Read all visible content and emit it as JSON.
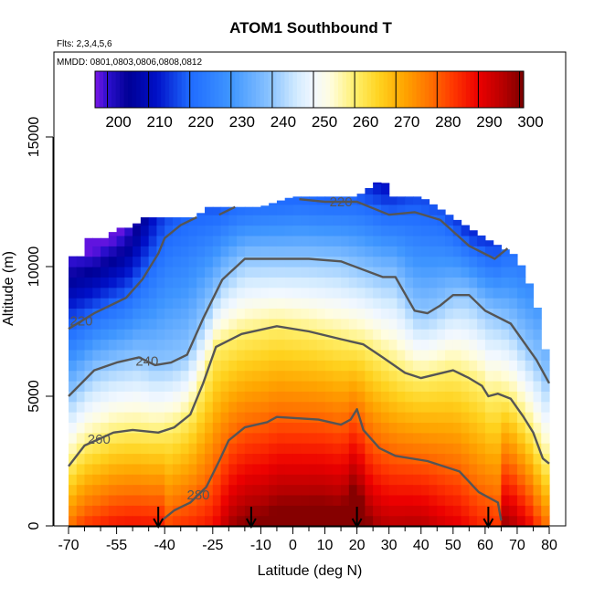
{
  "chart_data": {
    "type": "heatmap",
    "title": "ATOM1 Southbound T",
    "subtitle_lines": [
      "Flts: 2,3,4,5,6",
      "MMDD: 0801,0803,0806,0808,0812"
    ],
    "xlabel": "Latitude (deg N)",
    "ylabel": "Altitude (m)",
    "xlim": [
      -70,
      80
    ],
    "ylim": [
      0,
      17500
    ],
    "x_ticks": [
      -70,
      -55,
      -40,
      -25,
      -10,
      0,
      10,
      20,
      30,
      40,
      50,
      60,
      70,
      80
    ],
    "x_ticks_minor": [
      -65,
      -60,
      -50,
      -45,
      -35,
      -30,
      -20,
      -15,
      -5,
      5,
      15,
      25,
      35,
      45,
      55,
      65,
      75
    ],
    "y_ticks": [
      0,
      5000,
      10000,
      15000
    ],
    "colorbar": {
      "ticks": [
        200,
        210,
        220,
        230,
        240,
        250,
        260,
        270,
        280,
        290,
        300
      ],
      "range": [
        197,
        301
      ],
      "stops": [
        {
          "v": 197,
          "c": "#7b16e6"
        },
        {
          "v": 200,
          "c": "#2e0fd0"
        },
        {
          "v": 205,
          "c": "#000095"
        },
        {
          "v": 212,
          "c": "#0010c8"
        },
        {
          "v": 220,
          "c": "#1f6bff"
        },
        {
          "v": 230,
          "c": "#3f96ff"
        },
        {
          "v": 240,
          "c": "#8fc6ff"
        },
        {
          "v": 246,
          "c": "#d3ebff"
        },
        {
          "v": 250,
          "c": "#f2f8ff"
        },
        {
          "v": 254,
          "c": "#fffde0"
        },
        {
          "v": 260,
          "c": "#fff06e"
        },
        {
          "v": 266,
          "c": "#ffd21e"
        },
        {
          "v": 272,
          "c": "#ffa500"
        },
        {
          "v": 278,
          "c": "#ff7400"
        },
        {
          "v": 284,
          "c": "#ff3600"
        },
        {
          "v": 290,
          "c": "#ec0000"
        },
        {
          "v": 296,
          "c": "#b70000"
        },
        {
          "v": 301,
          "c": "#7a0000"
        }
      ]
    },
    "top_altitude_by_lat": [
      [
        -70,
        10400
      ],
      [
        -66,
        10400
      ],
      [
        -64,
        11100
      ],
      [
        -58,
        11100
      ],
      [
        -55,
        11500
      ],
      [
        -50,
        11500
      ],
      [
        -47,
        11900
      ],
      [
        -40,
        11900
      ],
      [
        -30,
        11900
      ],
      [
        -27,
        12300
      ],
      [
        -20,
        12300
      ],
      [
        -15,
        12300
      ],
      [
        -10,
        12300
      ],
      [
        0,
        12700
      ],
      [
        10,
        12700
      ],
      [
        20,
        12700
      ],
      [
        28,
        13400
      ],
      [
        31,
        12700
      ],
      [
        40,
        12700
      ],
      [
        45,
        12300
      ],
      [
        50,
        11900
      ],
      [
        55,
        11500
      ],
      [
        60,
        11100
      ],
      [
        70,
        10400
      ],
      [
        75,
        9000
      ],
      [
        78,
        7600
      ],
      [
        80,
        5500
      ]
    ],
    "contours": [
      {
        "label": "220",
        "points": [
          [
            -70,
            7600
          ],
          [
            -62,
            8200
          ],
          [
            -52,
            8800
          ],
          [
            -47,
            9500
          ],
          [
            -42,
            10500
          ],
          [
            -40,
            11100
          ],
          [
            -35,
            11600
          ],
          [
            -30,
            11900
          ]
        ]
      },
      {
        "label": "220",
        "points": [
          [
            -23,
            12000
          ],
          [
            -18,
            12300
          ]
        ]
      },
      {
        "label": "220",
        "points": [
          [
            2,
            12600
          ],
          [
            10,
            12500
          ],
          [
            20,
            12500
          ],
          [
            30,
            12000
          ],
          [
            38,
            12100
          ],
          [
            46,
            11800
          ],
          [
            55,
            10800
          ],
          [
            63,
            10300
          ],
          [
            67,
            10700
          ]
        ]
      },
      {
        "label": "240",
        "points": [
          [
            -70,
            5000
          ],
          [
            -62,
            6000
          ],
          [
            -55,
            6300
          ],
          [
            -48,
            6500
          ],
          [
            -43,
            6200
          ],
          [
            -38,
            6300
          ],
          [
            -33,
            6600
          ],
          [
            -28,
            8000
          ],
          [
            -22,
            9500
          ],
          [
            -15,
            10300
          ],
          [
            -5,
            10300
          ],
          [
            5,
            10300
          ],
          [
            15,
            10200
          ],
          [
            28,
            9600
          ],
          [
            32,
            9600
          ],
          [
            38,
            8300
          ],
          [
            42,
            8200
          ],
          [
            46,
            8500
          ],
          [
            50,
            8900
          ],
          [
            55,
            8900
          ],
          [
            60,
            8300
          ],
          [
            68,
            7800
          ],
          [
            76,
            6400
          ],
          [
            80,
            5500
          ]
        ]
      },
      {
        "label": "260",
        "points": [
          [
            -70,
            2300
          ],
          [
            -65,
            3100
          ],
          [
            -56,
            3600
          ],
          [
            -50,
            3700
          ],
          [
            -42,
            3600
          ],
          [
            -37,
            3800
          ],
          [
            -32,
            4300
          ],
          [
            -28,
            5500
          ],
          [
            -24,
            6900
          ],
          [
            -16,
            7400
          ],
          [
            -5,
            7700
          ],
          [
            5,
            7500
          ],
          [
            15,
            7200
          ],
          [
            22,
            7000
          ],
          [
            28,
            6500
          ],
          [
            35,
            5900
          ],
          [
            40,
            5700
          ],
          [
            50,
            6000
          ],
          [
            55,
            5700
          ],
          [
            59,
            5400
          ],
          [
            61,
            5000
          ],
          [
            64,
            5100
          ],
          [
            68,
            4900
          ],
          [
            72,
            4200
          ],
          [
            75,
            3600
          ],
          [
            78,
            2600
          ],
          [
            80,
            2400
          ]
        ]
      },
      {
        "label": "280",
        "points": [
          [
            -41,
            200
          ],
          [
            -37,
            600
          ],
          [
            -32,
            900
          ],
          [
            -27,
            1500
          ],
          [
            -23,
            2500
          ],
          [
            -20,
            3300
          ],
          [
            -15,
            3800
          ],
          [
            -8,
            4000
          ],
          [
            -5,
            4200
          ],
          [
            8,
            4100
          ],
          [
            15,
            3900
          ],
          [
            18,
            4100
          ],
          [
            20,
            4500
          ],
          [
            22,
            3700
          ],
          [
            27,
            3000
          ],
          [
            32,
            2700
          ],
          [
            42,
            2500
          ],
          [
            52,
            2100
          ],
          [
            58,
            1300
          ],
          [
            64,
            900
          ],
          [
            65,
            200
          ]
        ]
      }
    ],
    "arrows_at_lat": [
      -42,
      -13,
      20,
      61
    ]
  }
}
